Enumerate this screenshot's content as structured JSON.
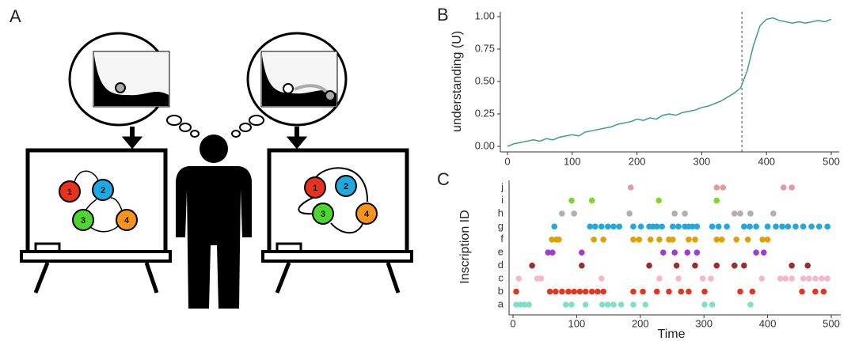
{
  "panel_labels": [
    "A",
    "B",
    "C"
  ],
  "panel_a": {
    "left_board": {
      "nodes": [
        "1",
        "2",
        "3",
        "4"
      ]
    },
    "right_board": {
      "nodes": [
        "1",
        "2",
        "3",
        "4"
      ]
    }
  },
  "chart_data": [
    {
      "type": "line",
      "ylabel": "understanding (U)",
      "color": "#3a9e8a",
      "x": [
        0,
        10,
        20,
        30,
        40,
        50,
        60,
        70,
        80,
        90,
        100,
        110,
        120,
        130,
        140,
        150,
        160,
        170,
        180,
        190,
        200,
        210,
        220,
        230,
        240,
        250,
        260,
        270,
        280,
        290,
        300,
        310,
        320,
        330,
        340,
        350,
        360,
        370,
        380,
        390,
        400,
        410,
        420,
        430,
        440,
        450,
        460,
        470,
        480,
        490,
        500
      ],
      "values": [
        0.0,
        0.02,
        0.03,
        0.04,
        0.05,
        0.04,
        0.06,
        0.05,
        0.07,
        0.08,
        0.09,
        0.08,
        0.11,
        0.12,
        0.13,
        0.14,
        0.15,
        0.17,
        0.18,
        0.19,
        0.21,
        0.2,
        0.22,
        0.21,
        0.24,
        0.25,
        0.24,
        0.26,
        0.27,
        0.28,
        0.3,
        0.31,
        0.33,
        0.35,
        0.38,
        0.41,
        0.45,
        0.58,
        0.78,
        0.93,
        0.98,
        0.99,
        0.97,
        0.96,
        0.95,
        0.96,
        0.95,
        0.96,
        0.97,
        0.96,
        0.98
      ],
      "vline": 362,
      "xlim": [
        0,
        500
      ],
      "xticks": [
        0,
        100,
        200,
        300,
        400,
        500
      ],
      "ylim": [
        0,
        1
      ],
      "yticks": [
        {
          "value": 0,
          "label": "0.00"
        },
        {
          "value": 0.25,
          "label": "0.25"
        },
        {
          "value": 0.5,
          "label": "0.50"
        },
        {
          "value": 0.75,
          "label": "0.75"
        },
        {
          "value": 1,
          "label": "1.00"
        }
      ]
    },
    {
      "type": "dot",
      "xlabel": "Time",
      "ylabel": "Inscription ID",
      "categories": [
        "a",
        "b",
        "c",
        "d",
        "e",
        "f",
        "g",
        "h",
        "i",
        "j"
      ],
      "series": [
        {
          "color": "#7fe0c8",
          "x": [
            5,
            12,
            18,
            25,
            83,
            92,
            114,
            140,
            149,
            158,
            170,
            189,
            208,
            301,
            313,
            373
          ]
        },
        {
          "color": "#e8341c",
          "x": [
            5,
            58,
            67,
            77,
            87,
            96,
            105,
            114,
            124,
            133,
            142,
            189,
            204,
            226,
            245,
            264,
            276,
            301,
            357,
            376,
            454,
            475,
            488
          ]
        },
        {
          "color": "#f4b8c8",
          "x": [
            9,
            38,
            44,
            139,
            230,
            260,
            298,
            311,
            391,
            420,
            428,
            438,
            456,
            465,
            475,
            485,
            494
          ]
        },
        {
          "color": "#9b2d2d",
          "x": [
            30,
            108,
            214,
            257,
            286,
            320,
            348,
            363,
            438,
            463
          ]
        },
        {
          "color": "#9a3fd0",
          "x": [
            55,
            62,
            108,
            236,
            254,
            274,
            289,
            382,
            394
          ]
        },
        {
          "color": "#e0a000",
          "x": [
            61,
            68,
            72,
            127,
            142,
            189,
            198,
            216,
            230,
            245,
            251,
            276,
            286,
            320,
            328,
            351,
            369,
            392,
            400
          ]
        },
        {
          "color": "#1ea9e0",
          "x": [
            65,
            121,
            129,
            139,
            149,
            158,
            167,
            189,
            201,
            214,
            220,
            226,
            234,
            251,
            260,
            270,
            276,
            282,
            289,
            313,
            323,
            336,
            363,
            372,
            382,
            400,
            413,
            423,
            432,
            444,
            456,
            469,
            481,
            494
          ]
        },
        {
          "color": "#b0b0b0",
          "x": [
            77,
            96,
            183,
            254,
            270,
            348,
            357,
            373,
            409
          ]
        },
        {
          "color": "#7fd630",
          "x": [
            92,
            124,
            229,
            320
          ]
        },
        {
          "color": "#e89898",
          "x": [
            185,
            320,
            330,
            425,
            438
          ]
        }
      ],
      "xlim": [
        0,
        500
      ],
      "xticks": [
        0,
        100,
        200,
        300,
        400,
        500
      ]
    }
  ]
}
